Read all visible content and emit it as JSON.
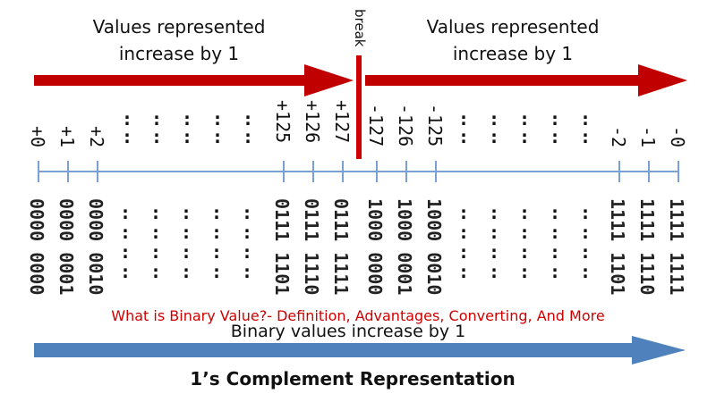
{
  "diagram": {
    "top_left_caption": [
      "Values represented",
      "increase by 1"
    ],
    "top_right_caption": [
      "Values represented",
      "increase by 1"
    ],
    "break_label": "break",
    "values_left": [
      "+0",
      "+1",
      "+2"
    ],
    "values_mid_left": [
      "+125",
      "+126",
      "+127"
    ],
    "values_mid_right": [
      "-127",
      "-126",
      "-125"
    ],
    "values_right": [
      "-2",
      "-1",
      "-0"
    ],
    "binary_left": [
      "0000 0000",
      "0000 0001",
      "0000 0010"
    ],
    "binary_mid_left": [
      "0111 1101",
      "0111 1110",
      "0111 1111"
    ],
    "binary_mid_right": [
      "1000 0000",
      "1000 0001",
      "1000 0010"
    ],
    "binary_right": [
      "1111 1101",
      "1111 1110",
      "1111 1111"
    ],
    "dots": ":",
    "watermark": "What is Binary Value?- Definition, Advantages, Converting, And More",
    "bottom_caption": "Binary values increase by 1",
    "title": "1’s Complement Representation",
    "colors": {
      "red_arrow": "#c00000",
      "blue_arrow": "#4f81bd",
      "axis": "#7aa0d4",
      "watermark": "#d00000",
      "text": "#111111"
    }
  }
}
